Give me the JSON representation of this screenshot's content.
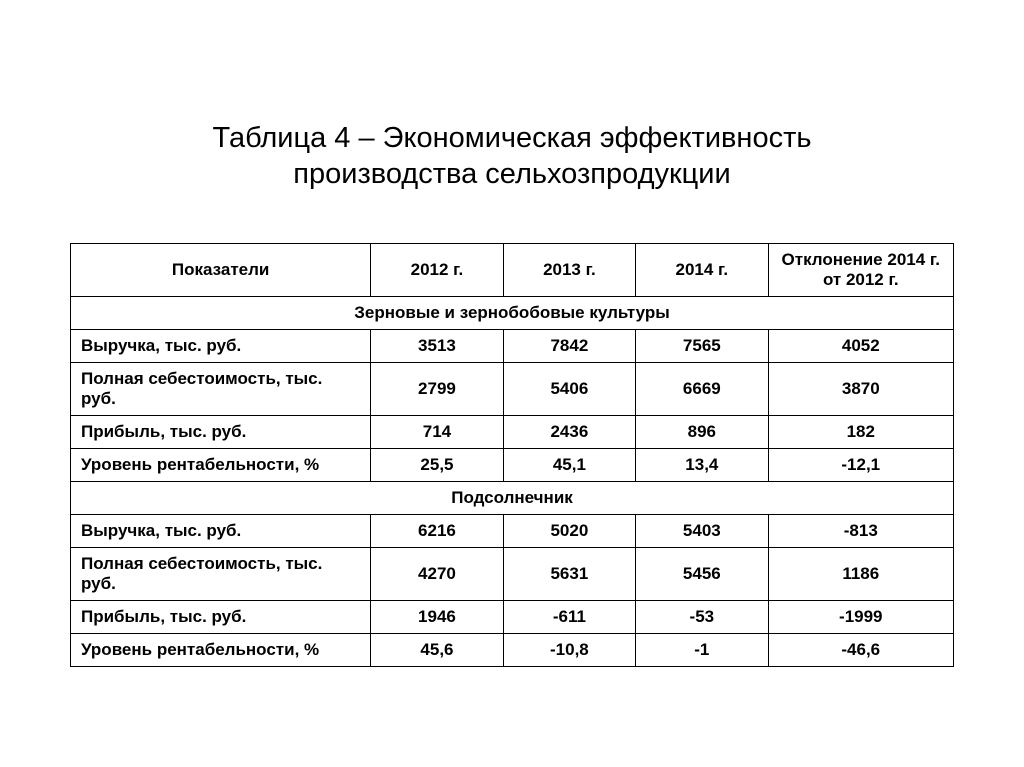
{
  "title_line1": "Таблица 4 – Экономическая эффективность",
  "title_line2": "производства сельхозпродукции",
  "columns": {
    "indicator": "Показатели",
    "y2012": "2012 г.",
    "y2013": "2013 г.",
    "y2014": "2014 г.",
    "deviation_line1": "Отклонение 2014 г.",
    "deviation_line2": "от 2012 г."
  },
  "sections": [
    {
      "heading": "Зерновые и зернобобовые культуры",
      "rows": [
        {
          "label": "Выручка, тыс. руб.",
          "y2012": "3513",
          "y2013": "7842",
          "y2014": "7565",
          "dev": "4052"
        },
        {
          "label": "Полная себестоимость, тыс. руб.",
          "y2012": "2799",
          "y2013": "5406",
          "y2014": "6669",
          "dev": "3870"
        },
        {
          "label": "Прибыль, тыс. руб.",
          "y2012": "714",
          "y2013": "2436",
          "y2014": "896",
          "dev": "182"
        },
        {
          "label": "Уровень рентабельности, %",
          "y2012": "25,5",
          "y2013": "45,1",
          "y2014": "13,4",
          "dev": "-12,1"
        }
      ]
    },
    {
      "heading": "Подсолнечник",
      "rows": [
        {
          "label": "Выручка, тыс. руб.",
          "y2012": "6216",
          "y2013": "5020",
          "y2014": "5403",
          "dev": "-813"
        },
        {
          "label": "Полная себестоимость, тыс. руб.",
          "y2012": "4270",
          "y2013": "5631",
          "y2014": "5456",
          "dev": "1186"
        },
        {
          "label": "Прибыль, тыс. руб.",
          "y2012": "1946",
          "y2013": "-611",
          "y2014": "-53",
          "dev": "-1999"
        },
        {
          "label": "Уровень рентабельности, %",
          "y2012": "45,6",
          "y2013": "-10,8",
          "y2014": "-1",
          "dev": "-46,6"
        }
      ]
    }
  ],
  "style": {
    "background_color": "#ffffff",
    "text_color": "#000000",
    "border_color": "#000000",
    "title_fontsize": 29,
    "cell_fontsize": 17,
    "font_family": "Arial",
    "col_widths_pct": [
      34,
      15,
      15,
      15,
      21
    ]
  }
}
